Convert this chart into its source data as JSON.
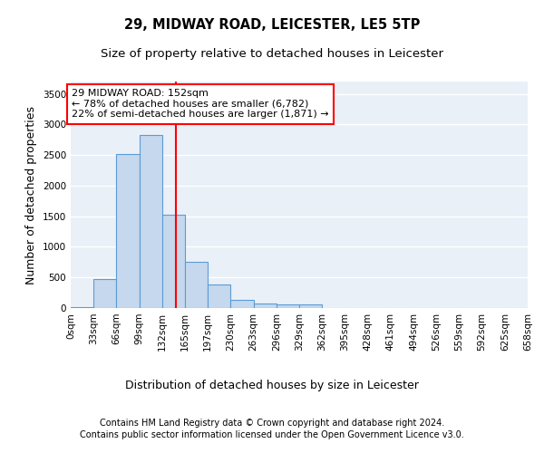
{
  "title_line1": "29, MIDWAY ROAD, LEICESTER, LE5 5TP",
  "title_line2": "Size of property relative to detached houses in Leicester",
  "xlabel": "Distribution of detached houses by size in Leicester",
  "ylabel": "Number of detached properties",
  "footnote1": "Contains HM Land Registry data © Crown copyright and database right 2024.",
  "footnote2": "Contains public sector information licensed under the Open Government Licence v3.0.",
  "bin_labels": [
    "0sqm",
    "33sqm",
    "66sqm",
    "99sqm",
    "132sqm",
    "165sqm",
    "197sqm",
    "230sqm",
    "263sqm",
    "296sqm",
    "329sqm",
    "362sqm",
    "395sqm",
    "428sqm",
    "461sqm",
    "494sqm",
    "526sqm",
    "559sqm",
    "592sqm",
    "625sqm",
    "658sqm"
  ],
  "bar_values": [
    20,
    475,
    2510,
    2820,
    1520,
    750,
    390,
    140,
    70,
    55,
    55,
    0,
    0,
    0,
    0,
    0,
    0,
    0,
    0,
    0
  ],
  "bar_color": "#c5d8ed",
  "bar_edge_color": "#5b9bd5",
  "ylim": [
    0,
    3700
  ],
  "yticks": [
    0,
    500,
    1000,
    1500,
    2000,
    2500,
    3000,
    3500
  ],
  "vline_x": 4.6,
  "annotation_title": "29 MIDWAY ROAD: 152sqm",
  "annotation_line2": "← 78% of detached houses are smaller (6,782)",
  "annotation_line3": "22% of semi-detached houses are larger (1,871) →",
  "bg_color": "#eaf0f8",
  "grid_color": "#ffffff",
  "title_fontsize": 10.5,
  "subtitle_fontsize": 9.5,
  "axis_label_fontsize": 9,
  "tick_fontsize": 7.5,
  "annotation_fontsize": 8,
  "footnote_fontsize": 7
}
